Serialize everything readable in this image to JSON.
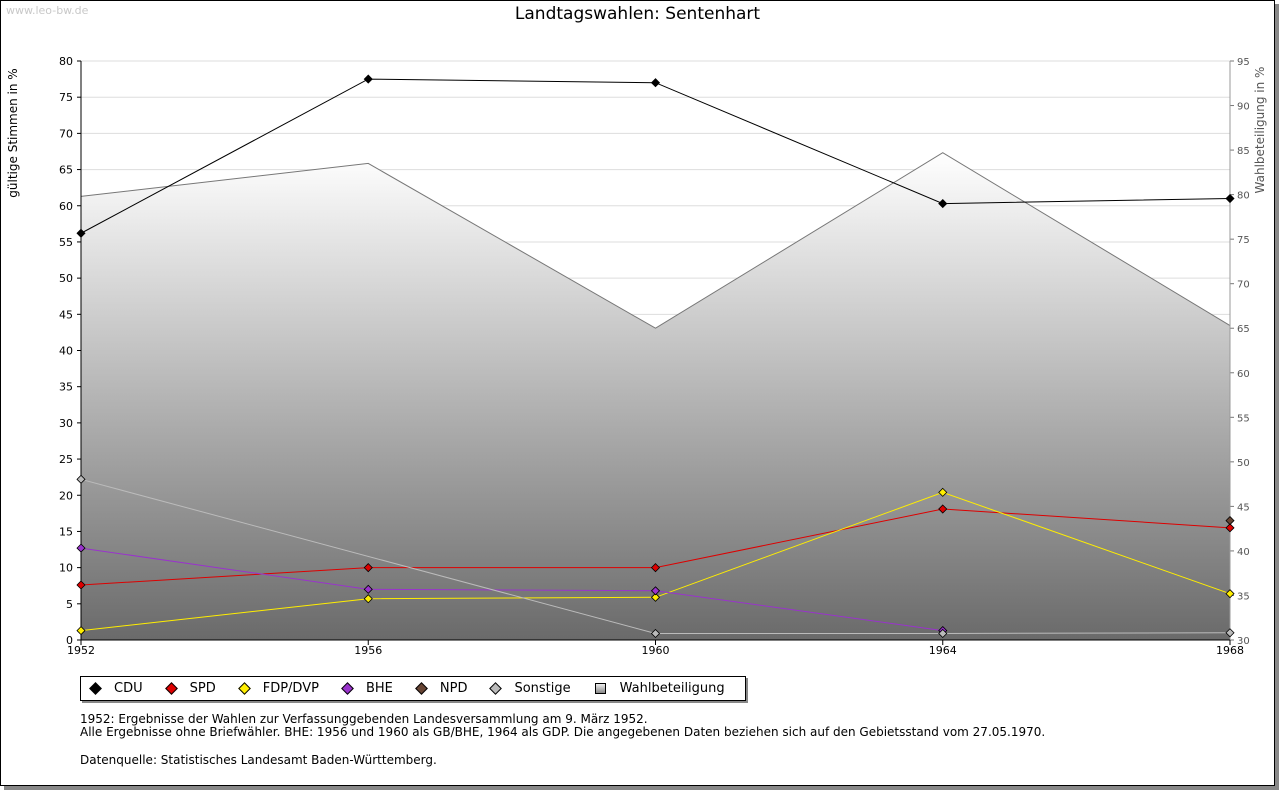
{
  "watermark": "www.leo-bw.de",
  "chart_data": {
    "type": "line",
    "title": "Landtagswahlen: Sentenhart",
    "ylabel": "gültige Stimmen in %",
    "y2label": "Wahlbeteiligung in %",
    "ylim": [
      0,
      80
    ],
    "y2lim": [
      30,
      95
    ],
    "categories": [
      "1952",
      "1956",
      "1960",
      "1964",
      "1968"
    ],
    "y_ticks": [
      "0",
      "5",
      "10",
      "15",
      "20",
      "25",
      "30",
      "35",
      "40",
      "45",
      "50",
      "55",
      "60",
      "65",
      "70",
      "75",
      "80"
    ],
    "y2_ticks": [
      "30",
      "35",
      "40",
      "45",
      "50",
      "55",
      "60",
      "65",
      "70",
      "75",
      "80",
      "85",
      "90",
      "95"
    ],
    "turnout": {
      "name": "Wahlbeteiligung",
      "values": [
        79.8,
        83.5,
        65.0,
        84.7,
        65.3
      ],
      "color": "#777777"
    },
    "series": [
      {
        "name": "CDU",
        "color": "#000000",
        "values": [
          56.2,
          77.5,
          77.0,
          60.3,
          61.0
        ]
      },
      {
        "name": "SPD",
        "color": "#dd0000",
        "values": [
          7.6,
          10.0,
          10.0,
          18.1,
          15.5
        ]
      },
      {
        "name": "FDP/DVP",
        "color": "#ffee00",
        "values": [
          1.3,
          5.7,
          5.9,
          20.4,
          6.4
        ]
      },
      {
        "name": "BHE",
        "color": "#9933cc",
        "values": [
          12.7,
          7.0,
          6.8,
          1.3,
          null
        ]
      },
      {
        "name": "NPD",
        "color": "#664433",
        "values": [
          null,
          null,
          null,
          null,
          16.5
        ]
      },
      {
        "name": "Sonstige",
        "color": "#bbbbbb",
        "values": [
          22.2,
          null,
          0.9,
          0.9,
          1.0
        ]
      }
    ]
  },
  "legend": {
    "items": [
      {
        "label": "CDU",
        "color": "#000000"
      },
      {
        "label": "SPD",
        "color": "#dd0000"
      },
      {
        "label": "FDP/DVP",
        "color": "#ffee00"
      },
      {
        "label": "BHE",
        "color": "#9933cc"
      },
      {
        "label": "NPD",
        "color": "#664433"
      },
      {
        "label": "Sonstige",
        "color": "#bbbbbb"
      }
    ],
    "turnout_label": "Wahlbeteiligung"
  },
  "notes": {
    "line1": "1952: Ergebnisse der Wahlen zur Verfassunggebenden Landesversammlung am 9. März 1952.",
    "line2": "Alle Ergebnisse ohne Briefwähler. BHE: 1956 und 1960 als GB/BHE, 1964 als GDP. Die angegebenen Daten beziehen sich auf den Gebietsstand vom 27.05.1970.",
    "source": "Datenquelle: Statistisches Landesamt Baden-Württemberg."
  }
}
